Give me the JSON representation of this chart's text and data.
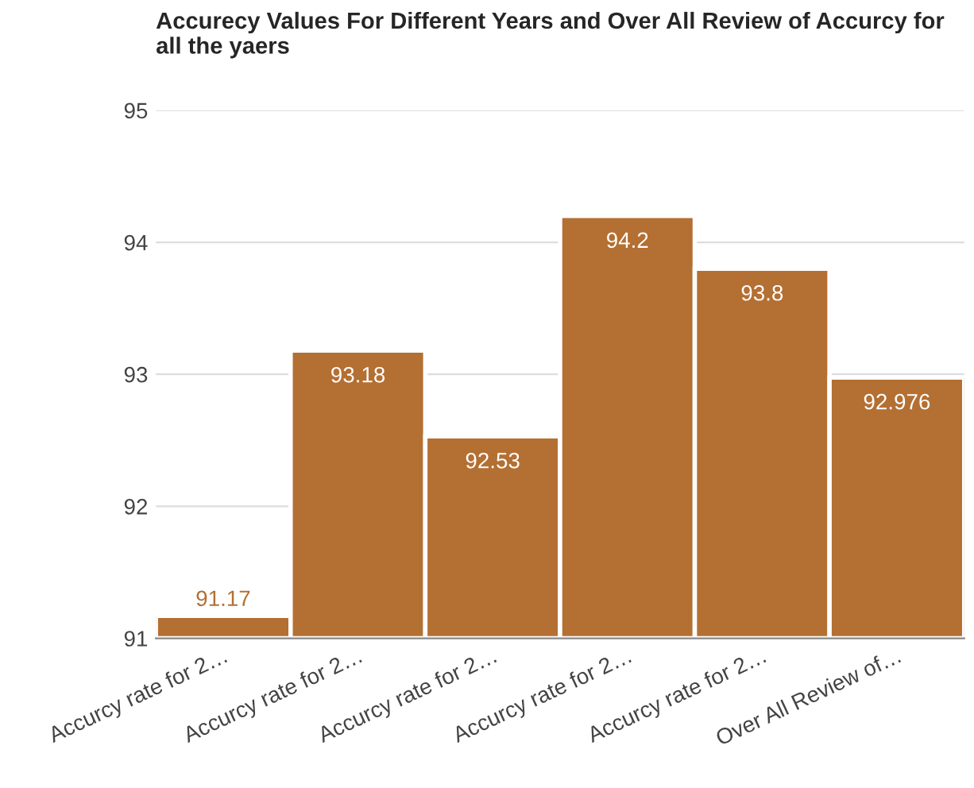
{
  "chart_data": {
    "type": "bar",
    "title": "Accurecy Values For Different Years and Over All Review of Accurcy for all the yaers",
    "categories": [
      "Accurcy rate for 2…",
      "Accurcy rate for 2…",
      "Accurcy rate for 2…",
      "Accurcy rate for 2…",
      "Accurcy rate for 2…",
      "Over All Review of…"
    ],
    "values": [
      91.17,
      93.18,
      92.53,
      94.2,
      93.8,
      92.976
    ],
    "color": "#b46f32",
    "ylim": [
      91,
      95
    ],
    "yticks": [
      91,
      92,
      93,
      94,
      95
    ],
    "grid": "y",
    "data_labels": true
  }
}
